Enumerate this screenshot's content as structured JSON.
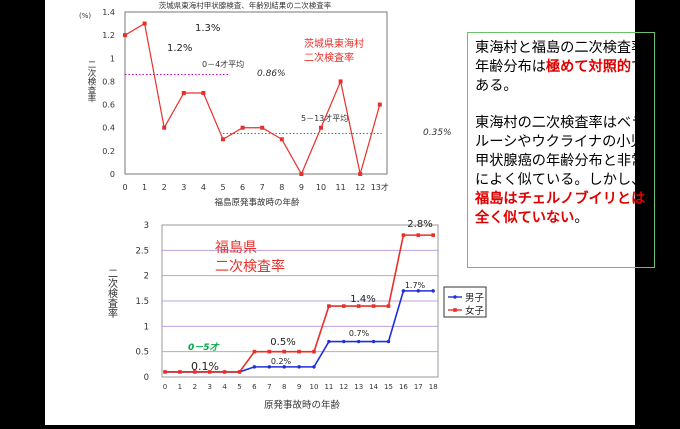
{
  "colors": {
    "red": "#e8302a",
    "blue": "#1f2fd6",
    "dotted_pink": "#cc00cc",
    "dotted_green": "#00aa44",
    "textbox_border": "#6cbf6c",
    "emphasis": "#e00000"
  },
  "chart_data": [
    {
      "type": "line",
      "title": "茨城県東海村甲状腺検査、年齢別結果の二次検査率",
      "xlabel": "福島原発事故時の年齢",
      "ylabel": "二次検査率",
      "y_unit": "(%)",
      "ylim": [
        0,
        1.4
      ],
      "yticks": [
        "0",
        "0.2",
        "0.4",
        "0.6",
        "0.8",
        "1",
        "1.2",
        "1.4"
      ],
      "categories": [
        "0",
        "1",
        "2",
        "3",
        "4",
        "5",
        "6",
        "7",
        "8",
        "9",
        "10",
        "11",
        "12",
        "13才"
      ],
      "series": [
        {
          "values": [
            1.2,
            1.3,
            0.4,
            0.7,
            0.7,
            0.3,
            0.4,
            0.4,
            0.3,
            0.0,
            0.4,
            0.8,
            0.0,
            0.6
          ]
        }
      ],
      "legend": [
        "茨城県東海村",
        "二次検査率"
      ],
      "annotations": [
        {
          "label": "1.2%",
          "x": "0"
        },
        {
          "label": "1.3%",
          "x": "1"
        },
        {
          "label": "0－4才平均",
          "value_label": "0.86%",
          "value": 0.86,
          "from": "0",
          "to": "5"
        },
        {
          "label": "5－13才平均",
          "value_label": "0.35%",
          "value": 0.35,
          "from": "5",
          "to": "13才"
        }
      ],
      "grid": false
    },
    {
      "type": "line",
      "xlabel": "原発事故時の年齢",
      "ylabel": "二次検査率",
      "ylim": [
        0,
        3
      ],
      "yticks": [
        "0",
        "0.5",
        "1",
        "1.5",
        "2",
        "2.5",
        "3"
      ],
      "categories": [
        "0",
        "1",
        "2",
        "3",
        "4",
        "5",
        "6",
        "7",
        "8",
        "9",
        "10",
        "11",
        "12",
        "13",
        "14",
        "15",
        "16",
        "17",
        "18"
      ],
      "series": [
        {
          "name": "男子",
          "values": [
            0.1,
            0.1,
            0.1,
            0.1,
            0.1,
            0.1,
            0.2,
            0.2,
            0.2,
            0.2,
            0.2,
            0.7,
            0.7,
            0.7,
            0.7,
            0.7,
            1.7,
            1.7,
            1.7
          ]
        },
        {
          "name": "女子",
          "values": [
            0.1,
            0.1,
            0.1,
            0.1,
            0.1,
            0.1,
            0.5,
            0.5,
            0.5,
            0.5,
            0.5,
            1.4,
            1.4,
            1.4,
            1.4,
            1.4,
            2.8,
            2.8,
            2.8
          ]
        }
      ],
      "chart_label": [
        "福島県",
        "二次検査率"
      ],
      "annotations": [
        "0.1%",
        "0.2%",
        "0.5%",
        "0.7%",
        "1.4%",
        "1.7%",
        "2.8%",
        "0－5才"
      ],
      "grid": true,
      "legend_position": "right"
    }
  ],
  "textbox": {
    "p1_a": "東海村と福島の二次検査率年齢分布は",
    "p1_red": "極めて対照的",
    "p1_b": "である。",
    "p2_a": "東海村の二次検査率はベラルーシやウクライナの小児甲状腺癌の年齢分布と非常によく似ている。しかし、",
    "p2_red": "福島はチェルノブイリとは全く似ていない",
    "p2_b": "。"
  }
}
